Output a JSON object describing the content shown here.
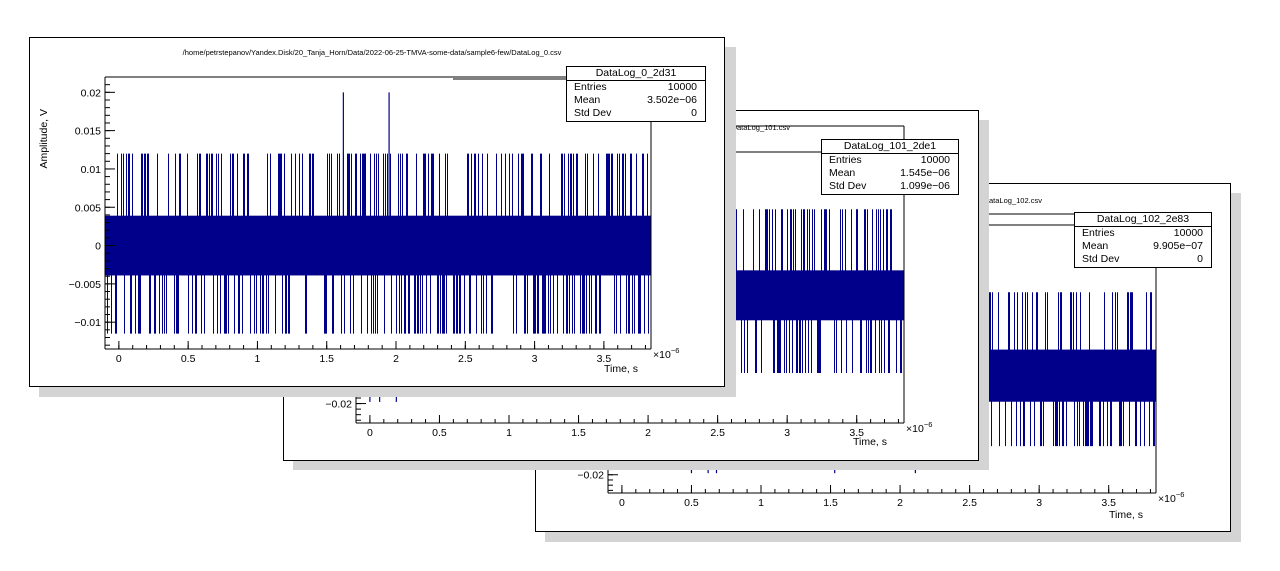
{
  "colors": {
    "histogram": "#00008b",
    "shadow": "#d4d4d4",
    "frame": "#000000",
    "background": "#ffffff"
  },
  "canvases": [
    {
      "id": "c0",
      "title": "/home/petrstepanov/Yandex.Disk/20_Tanja_Horn/Data/2022-06-25-TMVA-some-data/sample6-few/DataLog_0.csv",
      "stats": {
        "name": "DataLog_0_2d31",
        "rows": [
          {
            "label": "Entries",
            "value": "10000"
          },
          {
            "label": "Mean",
            "value": "3.502e−06"
          },
          {
            "label": "Std Dev",
            "value": "0"
          }
        ]
      },
      "chart_data": {
        "type": "histogram",
        "xlabel": "Time, s",
        "ylabel": "Amplitude, V",
        "x_exponent_label": "×10",
        "x_exponent": "−6",
        "xlim": [
          -0.1,
          3.84
        ],
        "ylim": [
          -0.0135,
          0.022
        ],
        "x_ticks": [
          {
            "v": 0,
            "label": "0"
          },
          {
            "v": 0.5,
            "label": "0.5"
          },
          {
            "v": 1,
            "label": "1"
          },
          {
            "v": 1.5,
            "label": "1.5"
          },
          {
            "v": 2,
            "label": "2"
          },
          {
            "v": 2.5,
            "label": "2.5"
          },
          {
            "v": 3,
            "label": "3"
          },
          {
            "v": 3.5,
            "label": "3.5"
          }
        ],
        "y_ticks": [
          {
            "v": -0.01,
            "label": "−0.01"
          },
          {
            "v": -0.005,
            "label": "−0.005"
          },
          {
            "v": 0,
            "label": "0"
          },
          {
            "v": 0.005,
            "label": "0.005"
          },
          {
            "v": 0.01,
            "label": "0.01"
          },
          {
            "v": 0.015,
            "label": "0.015"
          },
          {
            "v": 0.02,
            "label": "0.02"
          }
        ],
        "dense_band": [
          -0.0039,
          0.0039
        ],
        "spike_upper": 0.012,
        "spike_lower": -0.0115,
        "outliers": [
          {
            "x": 1.62,
            "y": 0.02
          },
          {
            "x": 1.95,
            "y": 0.02
          }
        ]
      }
    },
    {
      "id": "c1",
      "title": "e6-few/DataLog_101.csv",
      "stats": {
        "name": "DataLog_101_2de1",
        "rows": [
          {
            "label": "Entries",
            "value": "10000"
          },
          {
            "label": "Mean",
            "value": "1.545e−06"
          },
          {
            "label": "Std Dev",
            "value": "1.099e−06"
          }
        ]
      },
      "chart_data": {
        "type": "histogram",
        "xlabel": "Time, s",
        "ylabel": "",
        "x_exponent_label": "×10",
        "x_exponent": "−6",
        "xlim": [
          -0.1,
          3.84
        ],
        "ylim": [
          -0.0235,
          0.03
        ],
        "x_ticks": [
          {
            "v": 0,
            "label": "0"
          },
          {
            "v": 0.5,
            "label": "0.5"
          },
          {
            "v": 1,
            "label": "1"
          },
          {
            "v": 1.5,
            "label": "1.5"
          },
          {
            "v": 2,
            "label": "2"
          },
          {
            "v": 2.5,
            "label": "2.5"
          },
          {
            "v": 3,
            "label": "3"
          },
          {
            "v": 3.5,
            "label": "3.5"
          }
        ],
        "y_ticks": [
          {
            "v": -0.02,
            "label": "−0.02"
          }
        ],
        "dense_band": [
          -0.005,
          0.004
        ],
        "spike_upper": 0.015,
        "spike_lower": -0.0145,
        "outliers": [
          {
            "x": 0.0,
            "y": -0.0197
          },
          {
            "x": 0.07,
            "y": -0.0197
          },
          {
            "x": 0.19,
            "y": -0.0197
          }
        ]
      }
    },
    {
      "id": "c2",
      "title": "e6-few/DataLog_102.csv",
      "stats": {
        "name": "DataLog_102_2e83",
        "rows": [
          {
            "label": "Entries",
            "value": "10000"
          },
          {
            "label": "Mean",
            "value": "9.905e−07"
          },
          {
            "label": "Std Dev",
            "value": "0"
          }
        ]
      },
      "chart_data": {
        "type": "histogram",
        "xlabel": "Time, s",
        "ylabel": "",
        "x_exponent_label": "×10",
        "x_exponent": "−6",
        "xlim": [
          -0.1,
          3.84
        ],
        "ylim": [
          -0.0235,
          0.03
        ],
        "x_ticks": [
          {
            "v": 0,
            "label": "0"
          },
          {
            "v": 0.5,
            "label": "0.5"
          },
          {
            "v": 1,
            "label": "1"
          },
          {
            "v": 1.5,
            "label": "1.5"
          },
          {
            "v": 2,
            "label": "2"
          },
          {
            "v": 2.5,
            "label": "2.5"
          },
          {
            "v": 3,
            "label": "3"
          },
          {
            "v": 3.5,
            "label": "3.5"
          }
        ],
        "y_ticks": [
          {
            "v": -0.02,
            "label": "−0.02"
          }
        ],
        "dense_band": [
          -0.006,
          0.004
        ],
        "spike_upper": 0.015,
        "spike_lower": -0.0145,
        "outliers": [
          {
            "x": 0.5,
            "y": -0.0197
          },
          {
            "x": 0.62,
            "y": -0.0197
          },
          {
            "x": 0.68,
            "y": -0.0197
          },
          {
            "x": 1.53,
            "y": -0.0197
          },
          {
            "x": 2.11,
            "y": -0.0197
          }
        ]
      }
    }
  ]
}
